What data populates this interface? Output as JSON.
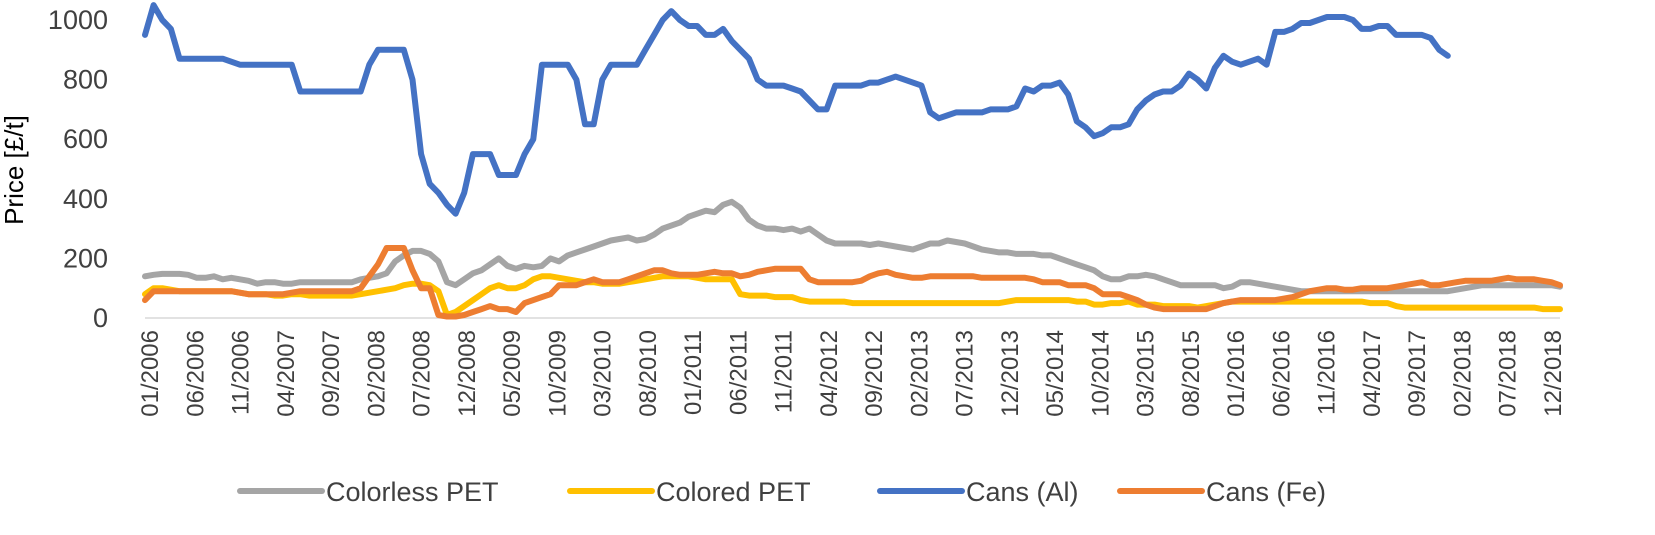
{
  "chart_data": {
    "type": "line",
    "ylabel": "Price [£/t]",
    "xlabel": "",
    "ylim": [
      0,
      1000
    ],
    "yticks": [
      0,
      200,
      400,
      600,
      800,
      1000
    ],
    "grid": false,
    "legend_position": "bottom",
    "x_tick_labels": [
      "01/2006",
      "06/2006",
      "11/2006",
      "04/2007",
      "09/2007",
      "02/2008",
      "07/2008",
      "12/2008",
      "05/2009",
      "10/2009",
      "03/2010",
      "08/2010",
      "01/2011",
      "06/2011",
      "11/2011",
      "04/2012",
      "09/2012",
      "02/2013",
      "07/2013",
      "12/2013",
      "05/2014",
      "10/2014",
      "03/2015",
      "08/2015",
      "01/2016",
      "06/2016",
      "11/2016",
      "04/2017",
      "09/2017",
      "02/2018",
      "07/2018",
      "12/2018"
    ],
    "series": [
      {
        "name": "Colorless PET",
        "color": "#a5a5a5",
        "values": [
          140,
          145,
          148,
          148,
          148,
          145,
          135,
          135,
          140,
          130,
          135,
          130,
          125,
          115,
          120,
          120,
          115,
          115,
          120,
          120,
          120,
          120,
          120,
          120,
          120,
          130,
          135,
          140,
          150,
          190,
          210,
          225,
          225,
          215,
          190,
          120,
          110,
          130,
          150,
          160,
          180,
          200,
          175,
          165,
          175,
          170,
          175,
          200,
          190,
          210,
          220,
          230,
          240,
          250,
          260,
          265,
          270,
          260,
          265,
          280,
          300,
          310,
          320,
          340,
          350,
          360,
          355,
          380,
          390,
          370,
          330,
          310,
          300,
          300,
          295,
          300,
          290,
          300,
          280,
          260,
          250,
          250,
          250,
          250,
          245,
          250,
          245,
          240,
          235,
          230,
          240,
          250,
          250,
          260,
          255,
          250,
          240,
          230,
          225,
          220,
          220,
          215,
          215,
          215,
          210,
          210,
          200,
          190,
          180,
          170,
          160,
          140,
          130,
          130,
          140,
          140,
          145,
          140,
          130,
          120,
          110,
          110,
          110,
          110,
          110,
          100,
          105,
          120,
          120,
          115,
          110,
          105,
          100,
          95,
          90,
          90,
          90,
          90,
          90,
          90,
          90,
          90,
          90,
          90,
          90,
          90,
          90,
          90,
          90,
          90,
          90,
          90,
          95,
          100,
          105,
          110,
          110,
          110,
          110,
          110,
          110,
          110,
          110,
          110,
          105
        ]
      },
      {
        "name": "Colored PET",
        "color": "#ffc000",
        "values": [
          80,
          100,
          100,
          95,
          90,
          90,
          90,
          90,
          90,
          90,
          90,
          85,
          80,
          80,
          80,
          75,
          75,
          80,
          80,
          75,
          75,
          75,
          75,
          75,
          75,
          80,
          85,
          90,
          95,
          100,
          110,
          115,
          115,
          110,
          90,
          10,
          20,
          40,
          60,
          80,
          100,
          110,
          100,
          100,
          110,
          130,
          140,
          140,
          135,
          130,
          125,
          120,
          120,
          115,
          115,
          115,
          120,
          125,
          130,
          135,
          140,
          140,
          140,
          140,
          135,
          130,
          130,
          130,
          130,
          80,
          75,
          75,
          75,
          70,
          70,
          70,
          60,
          55,
          55,
          55,
          55,
          55,
          50,
          50,
          50,
          50,
          50,
          50,
          50,
          50,
          50,
          50,
          50,
          50,
          50,
          50,
          50,
          50,
          50,
          50,
          55,
          60,
          60,
          60,
          60,
          60,
          60,
          60,
          55,
          55,
          45,
          45,
          50,
          50,
          55,
          45,
          45,
          45,
          40,
          40,
          40,
          40,
          35,
          40,
          45,
          50,
          55,
          55,
          55,
          55,
          55,
          55,
          55,
          55,
          55,
          55,
          55,
          55,
          55,
          55,
          55,
          55,
          50,
          50,
          50,
          40,
          35,
          35,
          35,
          35,
          35,
          35,
          35,
          35,
          35,
          35,
          35,
          35,
          35,
          35,
          35,
          35,
          30,
          30,
          30
        ]
      },
      {
        "name": "Cans (Al)",
        "color": "#4472c4",
        "values": [
          950,
          1050,
          1000,
          970,
          870,
          870,
          870,
          870,
          870,
          870,
          860,
          850,
          850,
          850,
          850,
          850,
          850,
          850,
          760,
          760,
          760,
          760,
          760,
          760,
          760,
          760,
          850,
          900,
          900,
          900,
          900,
          800,
          550,
          450,
          420,
          380,
          350,
          420,
          550,
          550,
          550,
          480,
          480,
          480,
          550,
          600,
          850,
          850,
          850,
          850,
          800,
          650,
          650,
          800,
          850,
          850,
          850,
          850,
          900,
          950,
          1000,
          1030,
          1000,
          980,
          980,
          950,
          950,
          970,
          930,
          900,
          870,
          800,
          780,
          780,
          780,
          770,
          760,
          730,
          700,
          700,
          780,
          780,
          780,
          780,
          790,
          790,
          800,
          810,
          800,
          790,
          780,
          690,
          670,
          680,
          690,
          690,
          690,
          690,
          700,
          700,
          700,
          710,
          770,
          760,
          780,
          780,
          790,
          750,
          660,
          640,
          610,
          620,
          640,
          640,
          650,
          700,
          730,
          750,
          760,
          760,
          780,
          820,
          800,
          770,
          840,
          880,
          860,
          850,
          860,
          870,
          850,
          960,
          960,
          970,
          990,
          990,
          1000,
          1010,
          1010,
          1010,
          1000,
          970,
          970,
          980,
          980,
          950,
          950,
          950,
          950,
          940,
          900,
          880
        ]
      },
      {
        "name": "Cans (Fe)",
        "color": "#ed7d31",
        "values": [
          60,
          90,
          90,
          90,
          90,
          90,
          90,
          90,
          90,
          90,
          90,
          85,
          80,
          80,
          80,
          80,
          80,
          85,
          90,
          90,
          90,
          90,
          90,
          90,
          90,
          100,
          140,
          180,
          235,
          235,
          235,
          160,
          100,
          100,
          10,
          5,
          5,
          10,
          20,
          30,
          40,
          30,
          30,
          20,
          50,
          60,
          70,
          80,
          110,
          110,
          110,
          120,
          130,
          120,
          120,
          120,
          130,
          140,
          150,
          160,
          160,
          150,
          145,
          145,
          145,
          150,
          155,
          150,
          150,
          140,
          145,
          155,
          160,
          165,
          165,
          165,
          165,
          130,
          120,
          120,
          120,
          120,
          120,
          125,
          140,
          150,
          155,
          145,
          140,
          135,
          135,
          140,
          140,
          140,
          140,
          140,
          140,
          135,
          135,
          135,
          135,
          135,
          135,
          130,
          120,
          120,
          120,
          110,
          110,
          110,
          100,
          80,
          80,
          80,
          70,
          60,
          45,
          35,
          30,
          30,
          30,
          30,
          30,
          30,
          40,
          50,
          55,
          60,
          60,
          60,
          60,
          60,
          65,
          70,
          80,
          90,
          95,
          100,
          100,
          95,
          95,
          100,
          100,
          100,
          100,
          105,
          110,
          115,
          120,
          110,
          110,
          115,
          120,
          125,
          125,
          125,
          125,
          130,
          135,
          130,
          130,
          130,
          125,
          120,
          110
        ]
      }
    ]
  }
}
